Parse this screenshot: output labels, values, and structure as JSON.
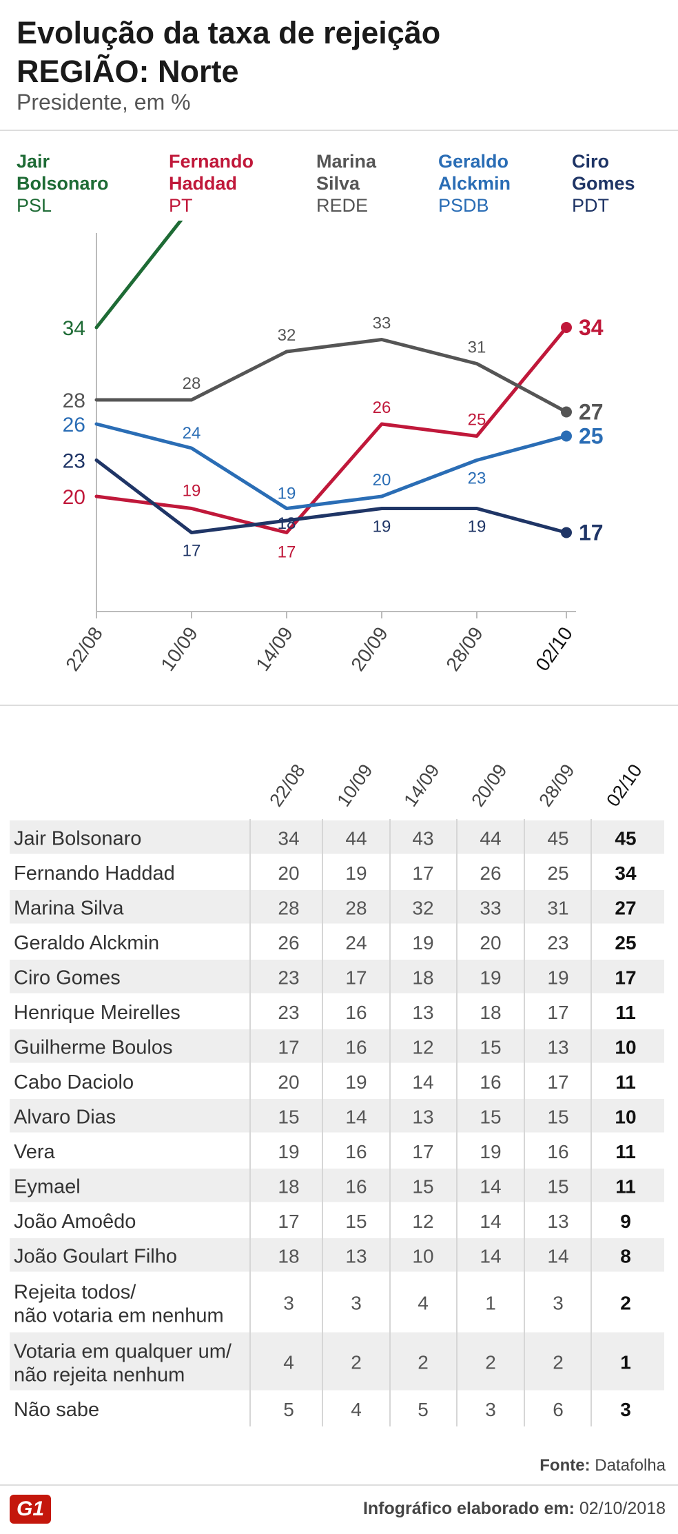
{
  "header": {
    "title_line1": "Evolução da taxa de rejeição",
    "title_line2": "REGIÃO: Norte",
    "subtitle": "Presidente, em %"
  },
  "legend": [
    {
      "name_line1": "Jair",
      "name_line2": "Bolsonaro",
      "party": "PSL",
      "color": "#1e6b35"
    },
    {
      "name_line1": "Fernando",
      "name_line2": "Haddad",
      "party": "PT",
      "color": "#c0183a"
    },
    {
      "name_line1": "Marina",
      "name_line2": "Silva",
      "party": "REDE",
      "color": "#555555"
    },
    {
      "name_line1": "Geraldo",
      "name_line2": "Alckmin",
      "party": "PSDB",
      "color": "#2a6db5"
    },
    {
      "name_line1": "Ciro",
      "name_line2": "Gomes",
      "party": "PDT",
      "color": "#1f3566"
    }
  ],
  "chart_data": {
    "type": "line",
    "x": [
      "22/08",
      "10/09",
      "14/09",
      "20/09",
      "28/09",
      "02/10"
    ],
    "series": [
      {
        "name": "Jair Bolsonaro",
        "values": [
          34,
          44,
          43,
          44,
          45,
          45
        ],
        "color": "#1e6b35"
      },
      {
        "name": "Fernando Haddad",
        "values": [
          20,
          19,
          17,
          26,
          25,
          34
        ],
        "color": "#c0183a"
      },
      {
        "name": "Marina Silva",
        "values": [
          28,
          28,
          32,
          33,
          31,
          27
        ],
        "color": "#555555"
      },
      {
        "name": "Geraldo Alckmin",
        "values": [
          26,
          24,
          19,
          20,
          23,
          25
        ],
        "color": "#2a6db5"
      },
      {
        "name": "Ciro Gomes",
        "values": [
          23,
          17,
          18,
          19,
          19,
          17
        ],
        "color": "#1f3566"
      }
    ]
  },
  "table": {
    "columns": [
      "22/08",
      "10/09",
      "14/09",
      "20/09",
      "28/09",
      "02/10"
    ],
    "rows": [
      {
        "label": [
          "Jair Bolsonaro"
        ],
        "values": [
          "34",
          "44",
          "43",
          "44",
          "45",
          "45"
        ]
      },
      {
        "label": [
          "Fernando Haddad"
        ],
        "values": [
          "20",
          "19",
          "17",
          "26",
          "25",
          "34"
        ]
      },
      {
        "label": [
          "Marina Silva"
        ],
        "values": [
          "28",
          "28",
          "32",
          "33",
          "31",
          "27"
        ]
      },
      {
        "label": [
          "Geraldo Alckmin"
        ],
        "values": [
          "26",
          "24",
          "19",
          "20",
          "23",
          "25"
        ]
      },
      {
        "label": [
          "Ciro Gomes"
        ],
        "values": [
          "23",
          "17",
          "18",
          "19",
          "19",
          "17"
        ]
      },
      {
        "label": [
          "Henrique Meirelles"
        ],
        "values": [
          "23",
          "16",
          "13",
          "18",
          "17",
          "11"
        ]
      },
      {
        "label": [
          "Guilherme Boulos"
        ],
        "values": [
          "17",
          "16",
          "12",
          "15",
          "13",
          "10"
        ]
      },
      {
        "label": [
          "Cabo Daciolo"
        ],
        "values": [
          "20",
          "19",
          "14",
          "16",
          "17",
          "11"
        ]
      },
      {
        "label": [
          "Alvaro Dias"
        ],
        "values": [
          "15",
          "14",
          "13",
          "15",
          "15",
          "10"
        ]
      },
      {
        "label": [
          "Vera"
        ],
        "values": [
          "19",
          "16",
          "17",
          "19",
          "16",
          "11"
        ]
      },
      {
        "label": [
          "Eymael"
        ],
        "values": [
          "18",
          "16",
          "15",
          "14",
          "15",
          "11"
        ]
      },
      {
        "label": [
          "João Amoêdo"
        ],
        "values": [
          "17",
          "15",
          "12",
          "14",
          "13",
          "9"
        ]
      },
      {
        "label": [
          "João Goulart Filho"
        ],
        "values": [
          "18",
          "13",
          "10",
          "14",
          "14",
          "8"
        ]
      },
      {
        "label": [
          "Rejeita todos/",
          "não votaria em nenhum"
        ],
        "values": [
          "3",
          "3",
          "4",
          "1",
          "3",
          "2"
        ]
      },
      {
        "label": [
          "Votaria em qualquer um/",
          "não rejeita nenhum"
        ],
        "values": [
          "4",
          "2",
          "2",
          "2",
          "2",
          "1"
        ]
      },
      {
        "label": [
          "Não sabe"
        ],
        "values": [
          "5",
          "4",
          "5",
          "3",
          "6",
          "3"
        ]
      }
    ]
  },
  "footer": {
    "source_label": "Fonte:",
    "source": "Datafolha",
    "logo": "G1",
    "info_label": "Infográfico elaborado em:",
    "info_date": "02/10/2018"
  }
}
